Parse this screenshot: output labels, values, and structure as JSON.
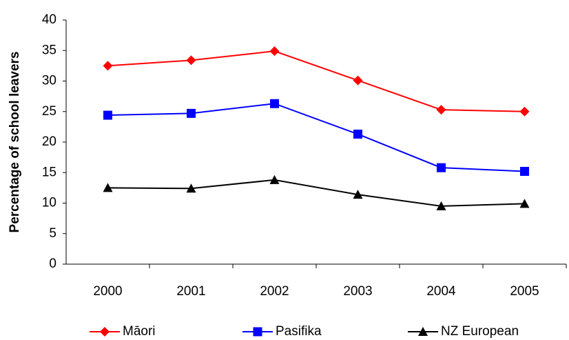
{
  "chart_data": {
    "type": "line",
    "y_label": "Percentage of school leavers",
    "categories": [
      "2000",
      "2001",
      "2002",
      "2003",
      "2004",
      "2005"
    ],
    "series": [
      {
        "name": "Māori",
        "color": "#ff0000",
        "marker": "diamond",
        "values": [
          32.5,
          33.4,
          34.9,
          30.1,
          25.3,
          25.0
        ]
      },
      {
        "name": "Pasifika",
        "color": "#0000ff",
        "marker": "square",
        "values": [
          24.4,
          24.7,
          26.3,
          21.3,
          15.8,
          15.2
        ]
      },
      {
        "name": "NZ European",
        "color": "#000000",
        "marker": "triangle",
        "values": [
          12.5,
          12.4,
          13.8,
          11.4,
          9.5,
          9.9
        ]
      }
    ],
    "ylim": [
      0,
      40
    ],
    "yticks": [
      0,
      5,
      10,
      15,
      20,
      25,
      30,
      35,
      40
    ],
    "grid": false,
    "legend": "bottom"
  }
}
